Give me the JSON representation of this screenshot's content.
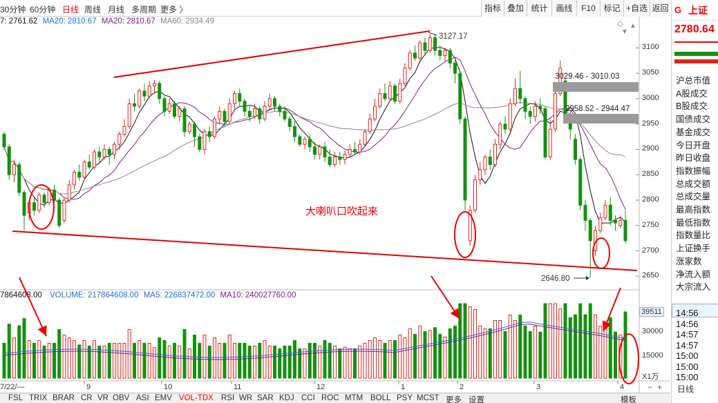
{
  "periods": [
    {
      "label": "30分钟"
    },
    {
      "label": "60分钟"
    },
    {
      "label": "日线"
    },
    {
      "label": "周线"
    },
    {
      "label": "月线"
    },
    {
      "label": "多周期"
    },
    {
      "label": "更多 〉"
    }
  ],
  "tools": [
    {
      "label": "指标"
    },
    {
      "label": "叠加"
    },
    {
      "label": "统计"
    },
    {
      "label": "画线"
    },
    {
      "label": "F10"
    },
    {
      "label": "标记"
    },
    {
      "label": "+自选"
    },
    {
      "label": "返回"
    }
  ],
  "ma_line": {
    "ma1": "7: 2761.62",
    "ma20a": "MA20: 2810.67",
    "ma20b": "MA20: 2810.67",
    "ma60": "MA60: 2934.49"
  },
  "vol_line": {
    "v0": "7864608.00",
    "volume": "VOLUME: 217864608.00",
    "ma5": "MA5: 226837472.00",
    "ma10": "MA10: 240027760.00"
  },
  "y_labels": [
    "3100",
    "3050",
    "3000",
    "2950",
    "2900",
    "2850",
    "2800",
    "2750",
    "2700",
    "2650"
  ],
  "vol_labels": [
    "39511",
    "30000",
    "15000"
  ],
  "vol_unit": "X1万",
  "x_labels": [
    "7/22/—",
    "9",
    "10",
    "11",
    "12",
    "1",
    "2",
    "3",
    "4"
  ],
  "annotations": {
    "high": "3127.17",
    "low": "2646.80",
    "gap1": "3029.46 - 3010.03",
    "gap2": "2958.52 - 2944.47",
    "note": "大喇叭口吹起来"
  },
  "right_panel": {
    "logo": "G",
    "name": "上证",
    "price": "2780.64",
    "items": [
      "沪总市值",
      "A股成交",
      "B股成交",
      "国债成交",
      "基金成交",
      "今日开盘",
      "昨日收盘",
      "指数振幅",
      "总成交额",
      "总成交量",
      "最高指数",
      "最低指数",
      "指数量比",
      "上证换手",
      "涨家数",
      "净流入额",
      "大宗流入"
    ],
    "times": [
      "14:56",
      "14:56",
      "14:57",
      "14:57",
      "15:00",
      "15:00",
      "15:00"
    ],
    "day_label": "日线"
  },
  "bottom_tabs": [
    "FSL",
    "TRIX",
    "BRAR",
    "CR",
    "VR",
    "OBV",
    "ASI",
    "EMV",
    "VOL-TDX",
    "RSI",
    "WR",
    "SAR",
    "KDJ",
    "CCI",
    "ROC",
    "MTM",
    "BOLL",
    "PSY",
    "MCST",
    "更多",
    "设置"
  ],
  "bottom_right": "模板",
  "colors": {
    "up": "#e3241d",
    "down": "#13920f",
    "ma5": "#111111",
    "ma10": "#7a1e8a",
    "ma60": "#888888",
    "trend": "#e00000",
    "accent": "#e00000"
  },
  "chart_data": {
    "type": "candlestick",
    "ylim": [
      2630,
      3140
    ],
    "candles": [
      {
        "o": 2930,
        "c": 2905,
        "h": 2935,
        "l": 2900
      },
      {
        "o": 2905,
        "c": 2850,
        "h": 2910,
        "l": 2840
      },
      {
        "o": 2850,
        "c": 2870,
        "h": 2880,
        "l": 2835
      },
      {
        "o": 2870,
        "c": 2815,
        "h": 2875,
        "l": 2808
      },
      {
        "o": 2815,
        "c": 2770,
        "h": 2820,
        "l": 2740
      },
      {
        "o": 2775,
        "c": 2795,
        "h": 2800,
        "l": 2760
      },
      {
        "o": 2795,
        "c": 2780,
        "h": 2805,
        "l": 2770
      },
      {
        "o": 2780,
        "c": 2810,
        "h": 2815,
        "l": 2775
      },
      {
        "o": 2810,
        "c": 2795,
        "h": 2815,
        "l": 2785
      },
      {
        "o": 2795,
        "c": 2820,
        "h": 2825,
        "l": 2790
      },
      {
        "o": 2820,
        "c": 2800,
        "h": 2830,
        "l": 2795
      },
      {
        "o": 2800,
        "c": 2750,
        "h": 2805,
        "l": 2745
      },
      {
        "o": 2760,
        "c": 2800,
        "h": 2805,
        "l": 2755
      },
      {
        "o": 2800,
        "c": 2830,
        "h": 2840,
        "l": 2795
      },
      {
        "o": 2830,
        "c": 2855,
        "h": 2860,
        "l": 2820
      },
      {
        "o": 2855,
        "c": 2845,
        "h": 2870,
        "l": 2838
      },
      {
        "o": 2845,
        "c": 2875,
        "h": 2880,
        "l": 2840
      },
      {
        "o": 2875,
        "c": 2865,
        "h": 2890,
        "l": 2860
      },
      {
        "o": 2865,
        "c": 2895,
        "h": 2900,
        "l": 2860
      },
      {
        "o": 2895,
        "c": 2885,
        "h": 2905,
        "l": 2875
      },
      {
        "o": 2885,
        "c": 2900,
        "h": 2910,
        "l": 2880
      },
      {
        "o": 2900,
        "c": 2890,
        "h": 2905,
        "l": 2870
      },
      {
        "o": 2890,
        "c": 2910,
        "h": 2915,
        "l": 2880
      },
      {
        "o": 2910,
        "c": 2930,
        "h": 2935,
        "l": 2900
      },
      {
        "o": 2930,
        "c": 2945,
        "h": 2960,
        "l": 2925
      },
      {
        "o": 2945,
        "c": 2990,
        "h": 3000,
        "l": 2940
      },
      {
        "o": 2990,
        "c": 2985,
        "h": 3010,
        "l": 2975
      },
      {
        "o": 2985,
        "c": 3015,
        "h": 3020,
        "l": 2980
      },
      {
        "o": 3015,
        "c": 3005,
        "h": 3030,
        "l": 2995
      },
      {
        "o": 3005,
        "c": 3025,
        "h": 3035,
        "l": 3000
      },
      {
        "o": 3025,
        "c": 3030,
        "h": 3037,
        "l": 3010
      },
      {
        "o": 3030,
        "c": 3000,
        "h": 3035,
        "l": 2990
      },
      {
        "o": 3000,
        "c": 2975,
        "h": 3005,
        "l": 2965
      },
      {
        "o": 2975,
        "c": 2990,
        "h": 3000,
        "l": 2970
      },
      {
        "o": 2990,
        "c": 2965,
        "h": 2995,
        "l": 2960
      },
      {
        "o": 2965,
        "c": 2980,
        "h": 2985,
        "l": 2955
      },
      {
        "o": 2980,
        "c": 2935,
        "h": 2985,
        "l": 2925
      },
      {
        "o": 2935,
        "c": 2950,
        "h": 2955,
        "l": 2930
      },
      {
        "o": 2950,
        "c": 2925,
        "h": 2955,
        "l": 2905
      },
      {
        "o": 2925,
        "c": 2900,
        "h": 2930,
        "l": 2895
      },
      {
        "o": 2900,
        "c": 2935,
        "h": 2940,
        "l": 2890
      },
      {
        "o": 2935,
        "c": 2925,
        "h": 2945,
        "l": 2915
      },
      {
        "o": 2925,
        "c": 2960,
        "h": 2965,
        "l": 2920
      },
      {
        "o": 2960,
        "c": 2975,
        "h": 2985,
        "l": 2950
      },
      {
        "o": 2975,
        "c": 2955,
        "h": 2980,
        "l": 2945
      },
      {
        "o": 2955,
        "c": 2990,
        "h": 3000,
        "l": 2950
      },
      {
        "o": 2990,
        "c": 3010,
        "h": 3015,
        "l": 2980
      },
      {
        "o": 3010,
        "c": 2995,
        "h": 3020,
        "l": 2985
      },
      {
        "o": 2995,
        "c": 2975,
        "h": 3000,
        "l": 2965
      },
      {
        "o": 2975,
        "c": 2965,
        "h": 2985,
        "l": 2955
      },
      {
        "o": 2965,
        "c": 2980,
        "h": 2990,
        "l": 2960
      },
      {
        "o": 2980,
        "c": 2960,
        "h": 2985,
        "l": 2950
      },
      {
        "o": 2960,
        "c": 2985,
        "h": 2995,
        "l": 2955
      },
      {
        "o": 2985,
        "c": 3000,
        "h": 3010,
        "l": 2980
      },
      {
        "o": 3000,
        "c": 2985,
        "h": 3005,
        "l": 2975
      },
      {
        "o": 2985,
        "c": 2975,
        "h": 2990,
        "l": 2965
      },
      {
        "o": 2975,
        "c": 2960,
        "h": 2985,
        "l": 2955
      },
      {
        "o": 2960,
        "c": 2945,
        "h": 2965,
        "l": 2935
      },
      {
        "o": 2945,
        "c": 2925,
        "h": 2955,
        "l": 2915
      },
      {
        "o": 2925,
        "c": 2910,
        "h": 2930,
        "l": 2905
      },
      {
        "o": 2910,
        "c": 2920,
        "h": 2925,
        "l": 2900
      },
      {
        "o": 2920,
        "c": 2905,
        "h": 2930,
        "l": 2895
      },
      {
        "o": 2905,
        "c": 2890,
        "h": 2915,
        "l": 2880
      },
      {
        "o": 2890,
        "c": 2905,
        "h": 2910,
        "l": 2880
      },
      {
        "o": 2905,
        "c": 2885,
        "h": 2915,
        "l": 2875
      },
      {
        "o": 2885,
        "c": 2870,
        "h": 2900,
        "l": 2865
      },
      {
        "o": 2870,
        "c": 2885,
        "h": 2895,
        "l": 2865
      },
      {
        "o": 2885,
        "c": 2880,
        "h": 2895,
        "l": 2870
      },
      {
        "o": 2880,
        "c": 2890,
        "h": 2898,
        "l": 2870
      },
      {
        "o": 2890,
        "c": 2900,
        "h": 2910,
        "l": 2885
      },
      {
        "o": 2900,
        "c": 2895,
        "h": 2915,
        "l": 2890
      },
      {
        "o": 2895,
        "c": 2910,
        "h": 2920,
        "l": 2890
      },
      {
        "o": 2910,
        "c": 2935,
        "h": 2940,
        "l": 2905
      },
      {
        "o": 2935,
        "c": 2960,
        "h": 2970,
        "l": 2930
      },
      {
        "o": 2960,
        "c": 2985,
        "h": 3000,
        "l": 2955
      },
      {
        "o": 2985,
        "c": 3010,
        "h": 3020,
        "l": 2980
      },
      {
        "o": 3010,
        "c": 3000,
        "h": 3030,
        "l": 2995
      },
      {
        "o": 3000,
        "c": 3025,
        "h": 3035,
        "l": 2995
      },
      {
        "o": 3025,
        "c": 2995,
        "h": 3030,
        "l": 2990
      },
      {
        "o": 2995,
        "c": 3030,
        "h": 3040,
        "l": 2990
      },
      {
        "o": 3030,
        "c": 3060,
        "h": 3070,
        "l": 3025
      },
      {
        "o": 3060,
        "c": 3090,
        "h": 3095,
        "l": 3055
      },
      {
        "o": 3090,
        "c": 3080,
        "h": 3105,
        "l": 3075
      },
      {
        "o": 3080,
        "c": 3110,
        "h": 3115,
        "l": 3070
      },
      {
        "o": 3110,
        "c": 3095,
        "h": 3120,
        "l": 3085
      },
      {
        "o": 3095,
        "c": 3120,
        "h": 3127,
        "l": 3090
      },
      {
        "o": 3120,
        "c": 3095,
        "h": 3127,
        "l": 3085
      },
      {
        "o": 3095,
        "c": 3085,
        "h": 3105,
        "l": 3075
      },
      {
        "o": 3085,
        "c": 3095,
        "h": 3100,
        "l": 3075
      },
      {
        "o": 3095,
        "c": 3070,
        "h": 3100,
        "l": 3060
      },
      {
        "o": 3070,
        "c": 3050,
        "h": 3075,
        "l": 3030
      },
      {
        "o": 3050,
        "c": 2960,
        "h": 3055,
        "l": 2950
      },
      {
        "o": 2960,
        "c": 2800,
        "h": 2965,
        "l": 2780
      },
      {
        "o": 2720,
        "c": 2780,
        "h": 2790,
        "l": 2710
      },
      {
        "o": 2780,
        "c": 2840,
        "h": 2850,
        "l": 2775
      },
      {
        "o": 2840,
        "c": 2860,
        "h": 2875,
        "l": 2830
      },
      {
        "o": 2860,
        "c": 2885,
        "h": 2890,
        "l": 2850
      },
      {
        "o": 2885,
        "c": 2870,
        "h": 2900,
        "l": 2860
      },
      {
        "o": 2870,
        "c": 2910,
        "h": 2920,
        "l": 2865
      },
      {
        "o": 2910,
        "c": 2950,
        "h": 2955,
        "l": 2900
      },
      {
        "o": 2950,
        "c": 2940,
        "h": 2965,
        "l": 2930
      },
      {
        "o": 2940,
        "c": 2990,
        "h": 3000,
        "l": 2935
      },
      {
        "o": 2990,
        "c": 3020,
        "h": 3040,
        "l": 2985
      },
      {
        "o": 3020,
        "c": 3000,
        "h": 3055,
        "l": 2990
      },
      {
        "o": 3000,
        "c": 2975,
        "h": 3005,
        "l": 2960
      },
      {
        "o": 2975,
        "c": 2965,
        "h": 2985,
        "l": 2950
      },
      {
        "o": 2965,
        "c": 2985,
        "h": 2995,
        "l": 2955
      },
      {
        "o": 2985,
        "c": 2980,
        "h": 3000,
        "l": 2970
      },
      {
        "o": 2980,
        "c": 2885,
        "h": 2985,
        "l": 2880
      },
      {
        "o": 2885,
        "c": 2940,
        "h": 2960,
        "l": 2880
      },
      {
        "o": 2940,
        "c": 3010,
        "h": 3020,
        "l": 2935
      },
      {
        "o": 3010,
        "c": 3060,
        "h": 3075,
        "l": 3005
      },
      {
        "o": 3035,
        "c": 2965,
        "h": 3040,
        "l": 2955
      },
      {
        "o": 2965,
        "c": 2940,
        "h": 2975,
        "l": 2920
      },
      {
        "o": 2920,
        "c": 2880,
        "h": 2930,
        "l": 2870
      },
      {
        "o": 2880,
        "c": 2790,
        "h": 2885,
        "l": 2780
      },
      {
        "o": 2790,
        "c": 2760,
        "h": 2800,
        "l": 2740
      },
      {
        "o": 2760,
        "c": 2720,
        "h": 2765,
        "l": 2647
      },
      {
        "o": 2700,
        "c": 2740,
        "h": 2750,
        "l": 2690
      },
      {
        "o": 2740,
        "c": 2765,
        "h": 2775,
        "l": 2735
      },
      {
        "o": 2765,
        "c": 2790,
        "h": 2800,
        "l": 2760
      },
      {
        "o": 2790,
        "c": 2760,
        "h": 2805,
        "l": 2750
      },
      {
        "o": 2760,
        "c": 2755,
        "h": 2770,
        "l": 2740
      },
      {
        "o": 2750,
        "c": 2760,
        "h": 2770,
        "l": 2745
      },
      {
        "o": 2760,
        "c": 2720,
        "h": 2780,
        "l": 2715
      }
    ]
  }
}
